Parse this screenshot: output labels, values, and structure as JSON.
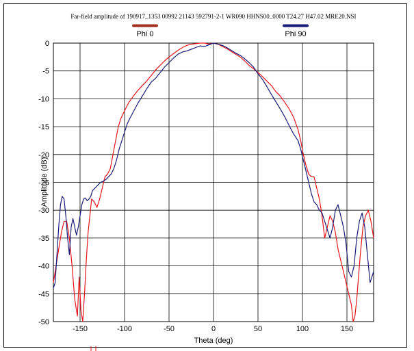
{
  "chart_data": {
    "type": "line",
    "title": "Far-field amplitude of 190917_1353 00992 21143 592791-2-1 WR090 HHNS00_0000 T24.27 H47.02 MRE20.NSI",
    "xlabel": "Theta (deg)",
    "ylabel": "Amplitude (dB)",
    "xlim": [
      -180,
      180
    ],
    "ylim": [
      -50,
      0
    ],
    "xticks": [
      -150,
      -100,
      -50,
      0,
      50,
      100,
      150
    ],
    "yticks": [
      0,
      -5,
      -10,
      -15,
      -20,
      -25,
      -30,
      -35,
      -40,
      -45,
      -50
    ],
    "grid": true,
    "legend_position": "top",
    "series": [
      {
        "name": "Phi 0",
        "color": "#e8141c",
        "legend_color": "#a0301c",
        "x": [
          -180,
          -177,
          -174,
          -171,
          -168,
          -165,
          -162,
          -159,
          -156,
          -153,
          -151,
          -149,
          -147,
          -145,
          -143,
          -141,
          -139,
          -137,
          -134,
          -131,
          -128,
          -125,
          -122,
          -119,
          -116,
          -113,
          -110,
          -107,
          -104,
          -101,
          -98,
          -95,
          -90,
          -85,
          -80,
          -75,
          -70,
          -65,
          -60,
          -55,
          -50,
          -45,
          -40,
          -35,
          -30,
          -25,
          -20,
          -15,
          -10,
          -5,
          0,
          5,
          10,
          15,
          20,
          25,
          30,
          35,
          40,
          45,
          50,
          55,
          60,
          65,
          70,
          75,
          80,
          85,
          90,
          95,
          98,
          101,
          104,
          107,
          110,
          113,
          116,
          119,
          122,
          125,
          128,
          131,
          134,
          137,
          140,
          143,
          146,
          149,
          152,
          155,
          157,
          159,
          161,
          163,
          165,
          168,
          171,
          174,
          177,
          180
        ],
        "y": [
          -43,
          -40,
          -37,
          -34,
          -32,
          -32,
          -35,
          -40,
          -46,
          -49,
          -42,
          -48,
          -50,
          -45,
          -39,
          -34,
          -31,
          -28,
          -28.5,
          -29.5,
          -28,
          -26,
          -24,
          -23.5,
          -22.5,
          -20,
          -17.5,
          -15,
          -13.5,
          -12.5,
          -11.5,
          -10.6,
          -9.5,
          -8.5,
          -7.6,
          -6.8,
          -5.8,
          -4.8,
          -4,
          -3.2,
          -2.5,
          -1.9,
          -1.3,
          -0.8,
          -0.4,
          -0.2,
          -0.1,
          0,
          0,
          -0.2,
          0,
          -0.2,
          -0.6,
          -1,
          -1.5,
          -2,
          -2.5,
          -3.2,
          -4,
          -4.6,
          -5.3,
          -6,
          -6.8,
          -7.6,
          -8.7,
          -9.5,
          -10.6,
          -11.8,
          -13.3,
          -15.5,
          -17.5,
          -20,
          -22,
          -23.5,
          -24,
          -24,
          -26,
          -28,
          -31,
          -35,
          -33,
          -31,
          -32,
          -34,
          -37,
          -39,
          -41,
          -43,
          -45,
          -47,
          -50,
          -49,
          -46,
          -42,
          -38,
          -33,
          -31,
          -30,
          -32,
          -35
        ]
      },
      {
        "name": "Phi 90",
        "color": "#1a1a78",
        "legend_color": "#1a1a78",
        "x": [
          -180,
          -178,
          -176,
          -174,
          -172,
          -170,
          -168,
          -166,
          -164,
          -162,
          -160,
          -158,
          -156,
          -154,
          -152,
          -150,
          -148,
          -146,
          -144,
          -142,
          -140,
          -138,
          -136,
          -133,
          -130,
          -127,
          -124,
          -121,
          -118,
          -115,
          -112,
          -109,
          -106,
          -103,
          -100,
          -97,
          -94,
          -90,
          -85,
          -80,
          -75,
          -70,
          -65,
          -60,
          -55,
          -50,
          -45,
          -40,
          -35,
          -30,
          -25,
          -20,
          -15,
          -10,
          -5,
          0,
          5,
          10,
          15,
          20,
          25,
          30,
          35,
          40,
          45,
          50,
          55,
          60,
          65,
          70,
          75,
          80,
          85,
          90,
          95,
          98,
          101,
          104,
          107,
          110,
          113,
          116,
          119,
          122,
          125,
          128,
          131,
          134,
          137,
          140,
          143,
          146,
          149,
          152,
          155,
          158,
          161,
          164,
          167,
          170,
          173,
          176,
          178,
          180
        ],
        "y": [
          -44,
          -43,
          -38,
          -33,
          -29,
          -27.5,
          -28,
          -31,
          -35,
          -38,
          -33,
          -31.5,
          -33,
          -34.5,
          -33,
          -31,
          -29,
          -28,
          -27.8,
          -28.3,
          -28,
          -27.5,
          -26.5,
          -26,
          -25.5,
          -25,
          -24.8,
          -24.5,
          -24,
          -23.5,
          -22.5,
          -21,
          -19,
          -17.5,
          -16,
          -14.5,
          -13.5,
          -12.3,
          -10.8,
          -9.5,
          -8.2,
          -7,
          -6.3,
          -5.3,
          -4.3,
          -3.5,
          -2.7,
          -2,
          -1.6,
          -1.4,
          -1.1,
          -0.8,
          -0.5,
          -0.6,
          -0.3,
          0,
          -0.2,
          -0.4,
          -0.8,
          -1.3,
          -1.8,
          -2.2,
          -2.8,
          -3.5,
          -4.3,
          -5.5,
          -6.5,
          -7.8,
          -9.2,
          -10.5,
          -11.8,
          -13.2,
          -14.8,
          -16.3,
          -17.5,
          -19,
          -21,
          -23,
          -25,
          -27,
          -28.5,
          -29,
          -30,
          -30.5,
          -32,
          -33.5,
          -35,
          -33,
          -30,
          -29,
          -31,
          -33,
          -36,
          -41,
          -42,
          -40,
          -35,
          -32,
          -30.5,
          -33,
          -38,
          -43,
          -42,
          -41
        ]
      }
    ]
  }
}
